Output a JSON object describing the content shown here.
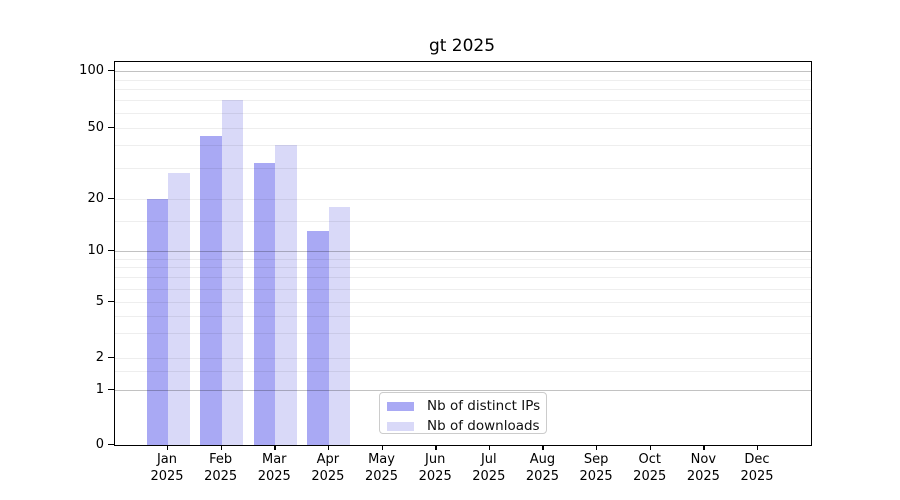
{
  "title": "gt 2025",
  "chart_data": {
    "type": "bar",
    "title": "gt 2025",
    "categories": [
      "Jan 2025",
      "Feb 2025",
      "Mar 2025",
      "Apr 2025",
      "May 2025",
      "Jun 2025",
      "Jul 2025",
      "Aug 2025",
      "Sep 2025",
      "Oct 2025",
      "Nov 2025",
      "Dec 2025"
    ],
    "months": [
      "Jan",
      "Feb",
      "Mar",
      "Apr",
      "May",
      "Jun",
      "Jul",
      "Aug",
      "Sep",
      "Oct",
      "Nov",
      "Dec"
    ],
    "year_label": "2025",
    "series": [
      {
        "name": "Nb of distinct IPs",
        "color": "#a9a9f4",
        "values": [
          20,
          45,
          32,
          13,
          0,
          0,
          0,
          0,
          0,
          0,
          0,
          0
        ]
      },
      {
        "name": "Nb of downloads",
        "color": "#d9d9f8",
        "values": [
          28,
          70,
          40,
          18,
          0,
          0,
          0,
          0,
          0,
          0,
          0,
          0
        ]
      }
    ],
    "xlabel": "",
    "ylabel": "",
    "yscale": "log-like",
    "y_ticks": [
      100,
      50,
      20,
      10,
      5,
      2,
      1,
      0
    ],
    "ylim": [
      0,
      110
    ],
    "grid": true,
    "legend_position": "bottom-center"
  },
  "colors": {
    "bar_distinct_ips": "#a9a9f4",
    "bar_downloads": "#d9d9f8",
    "axis_spine": "#000000",
    "legend_border": "#cccccc",
    "background": "#ffffff"
  }
}
